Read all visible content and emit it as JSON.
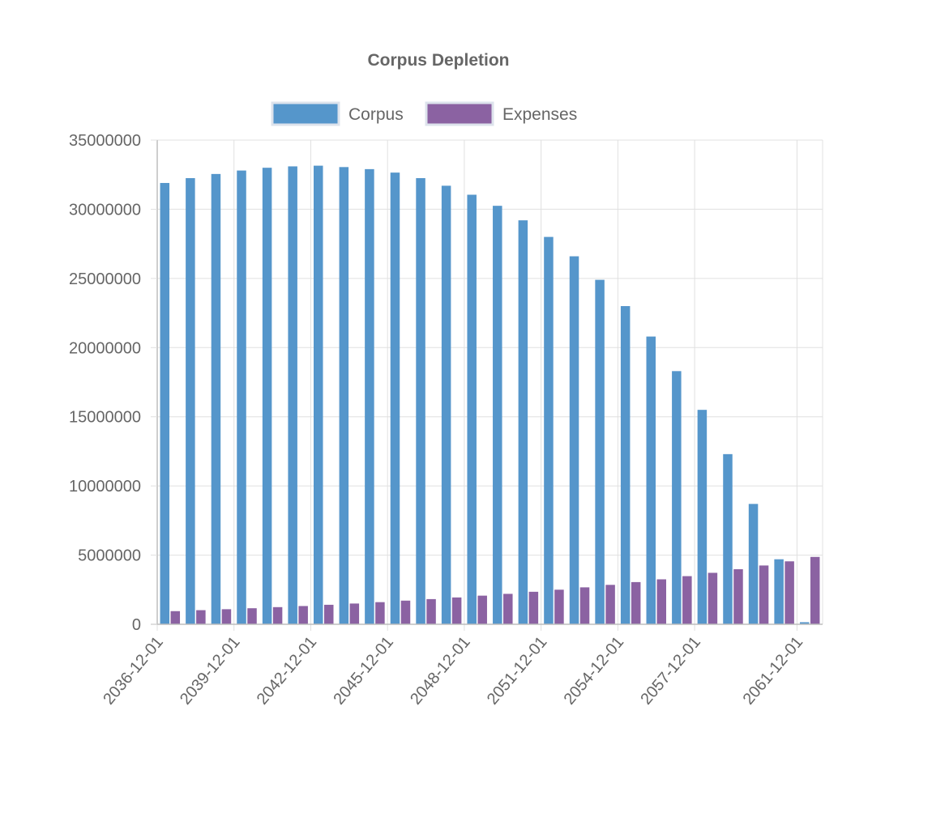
{
  "chart_data": {
    "type": "bar",
    "title": "Corpus Depletion",
    "legend_position": "top-center",
    "grid": true,
    "xlabel": "",
    "ylabel": "",
    "ylim": [
      0,
      35000000
    ],
    "y_ticks": [
      "0",
      "5000000",
      "10000000",
      "15000000",
      "20000000",
      "25000000",
      "30000000",
      "35000000"
    ],
    "y_tick_values": [
      0,
      5000000,
      10000000,
      15000000,
      20000000,
      25000000,
      30000000,
      35000000
    ],
    "x_tick_labels": [
      {
        "label": "2036-12-01",
        "category_index": 0
      },
      {
        "label": "2039-12-01",
        "category_index": 3
      },
      {
        "label": "2042-12-01",
        "category_index": 6
      },
      {
        "label": "2045-12-01",
        "category_index": 9
      },
      {
        "label": "2048-12-01",
        "category_index": 12
      },
      {
        "label": "2051-12-01",
        "category_index": 15
      },
      {
        "label": "2054-12-01",
        "category_index": 18
      },
      {
        "label": "2057-12-01",
        "category_index": 21
      },
      {
        "label": "2061-12-01",
        "category_index": 25
      }
    ],
    "categories": [
      "2036-12-01",
      "2037-12-01",
      "2038-12-01",
      "2039-12-01",
      "2040-12-01",
      "2041-12-01",
      "2042-12-01",
      "2043-12-01",
      "2044-12-01",
      "2045-12-01",
      "2046-12-01",
      "2047-12-01",
      "2048-12-01",
      "2049-12-01",
      "2050-12-01",
      "2051-12-01",
      "2052-12-01",
      "2053-12-01",
      "2054-12-01",
      "2055-12-01",
      "2056-12-01",
      "2057-12-01",
      "2058-12-01",
      "2059-12-01",
      "2060-12-01",
      "2061-12-01"
    ],
    "series": [
      {
        "name": "Corpus",
        "color": "#5596cb",
        "values": [
          31900000,
          32250000,
          32550000,
          32800000,
          33000000,
          33100000,
          33150000,
          33050000,
          32900000,
          32650000,
          32250000,
          31700000,
          31050000,
          30250000,
          29200000,
          28000000,
          26600000,
          24900000,
          23000000,
          20800000,
          18300000,
          15500000,
          12300000,
          8700000,
          4700000,
          150000
        ]
      },
      {
        "name": "Expenses",
        "color": "#8b62a2",
        "values": [
          950000,
          1020000,
          1090000,
          1160000,
          1240000,
          1320000,
          1410000,
          1500000,
          1600000,
          1710000,
          1820000,
          1940000,
          2070000,
          2200000,
          2350000,
          2500000,
          2670000,
          2850000,
          3050000,
          3250000,
          3480000,
          3720000,
          3980000,
          4250000,
          4550000,
          4870000
        ]
      }
    ]
  }
}
